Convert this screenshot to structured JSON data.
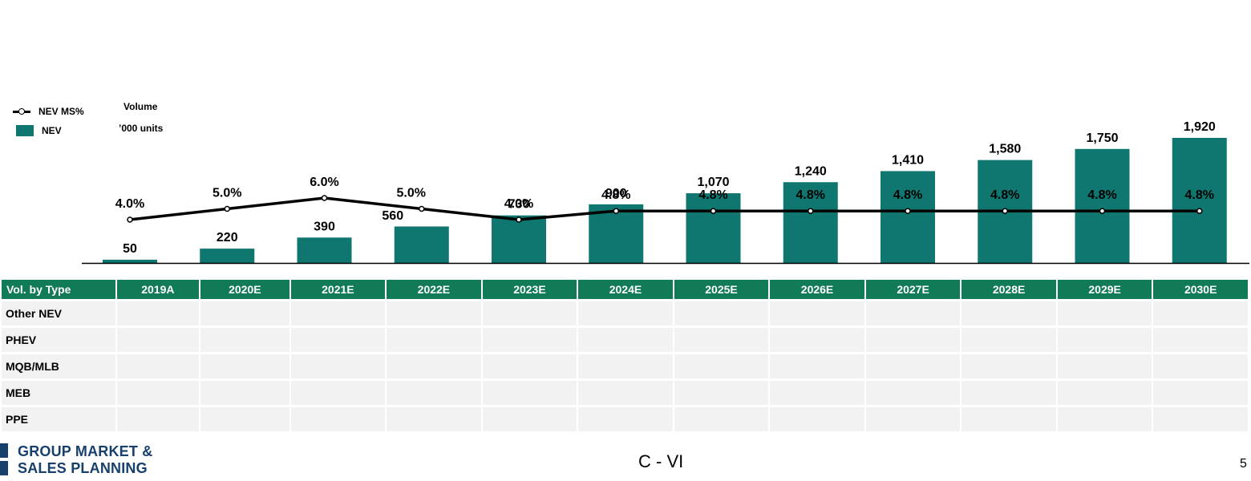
{
  "chart_data": {
    "type": "bar",
    "categories": [
      "2019A",
      "2020E",
      "2021E",
      "2022E",
      "2023E",
      "2024E",
      "2025E",
      "2026E",
      "2027E",
      "2028E",
      "2029E",
      "2030E"
    ],
    "series": [
      {
        "name": "NEV",
        "type": "bar",
        "color": "#0f7670",
        "values": [
          50,
          220,
          390,
          560,
          730,
          900,
          1070,
          1240,
          1410,
          1580,
          1750,
          1920
        ],
        "labels": [
          "50",
          "220",
          "390",
          "560",
          "730",
          "900",
          "1,070",
          "1,240",
          "1,410",
          "1,580",
          "1,750",
          "1,920"
        ]
      },
      {
        "name": "NEV MS%",
        "type": "line",
        "color": "#000000",
        "values": [
          4.0,
          5.0,
          6.0,
          5.0,
          4.0,
          4.8,
          4.8,
          4.8,
          4.8,
          4.8,
          4.8,
          4.8
        ],
        "labels": [
          "4.0%",
          "5.0%",
          "6.0%",
          "5.0%",
          "4.0%",
          "4.8%",
          "4.8%",
          "4.8%",
          "4.8%",
          "4.8%",
          "4.8%",
          "4.8%"
        ]
      }
    ],
    "ylabel": "Volume",
    "yunit": "’000 units",
    "legend": "top-left",
    "grid": false
  },
  "table": {
    "header_first": "Vol. by Type",
    "rows": [
      "Other NEV",
      "PHEV",
      "MQB/MLB",
      "MEB",
      "PPE"
    ]
  },
  "footer": {
    "logo_line1": "GROUP MARKET &",
    "logo_line2": "SALES PLANNING",
    "center": "C - VI",
    "page": "5"
  }
}
